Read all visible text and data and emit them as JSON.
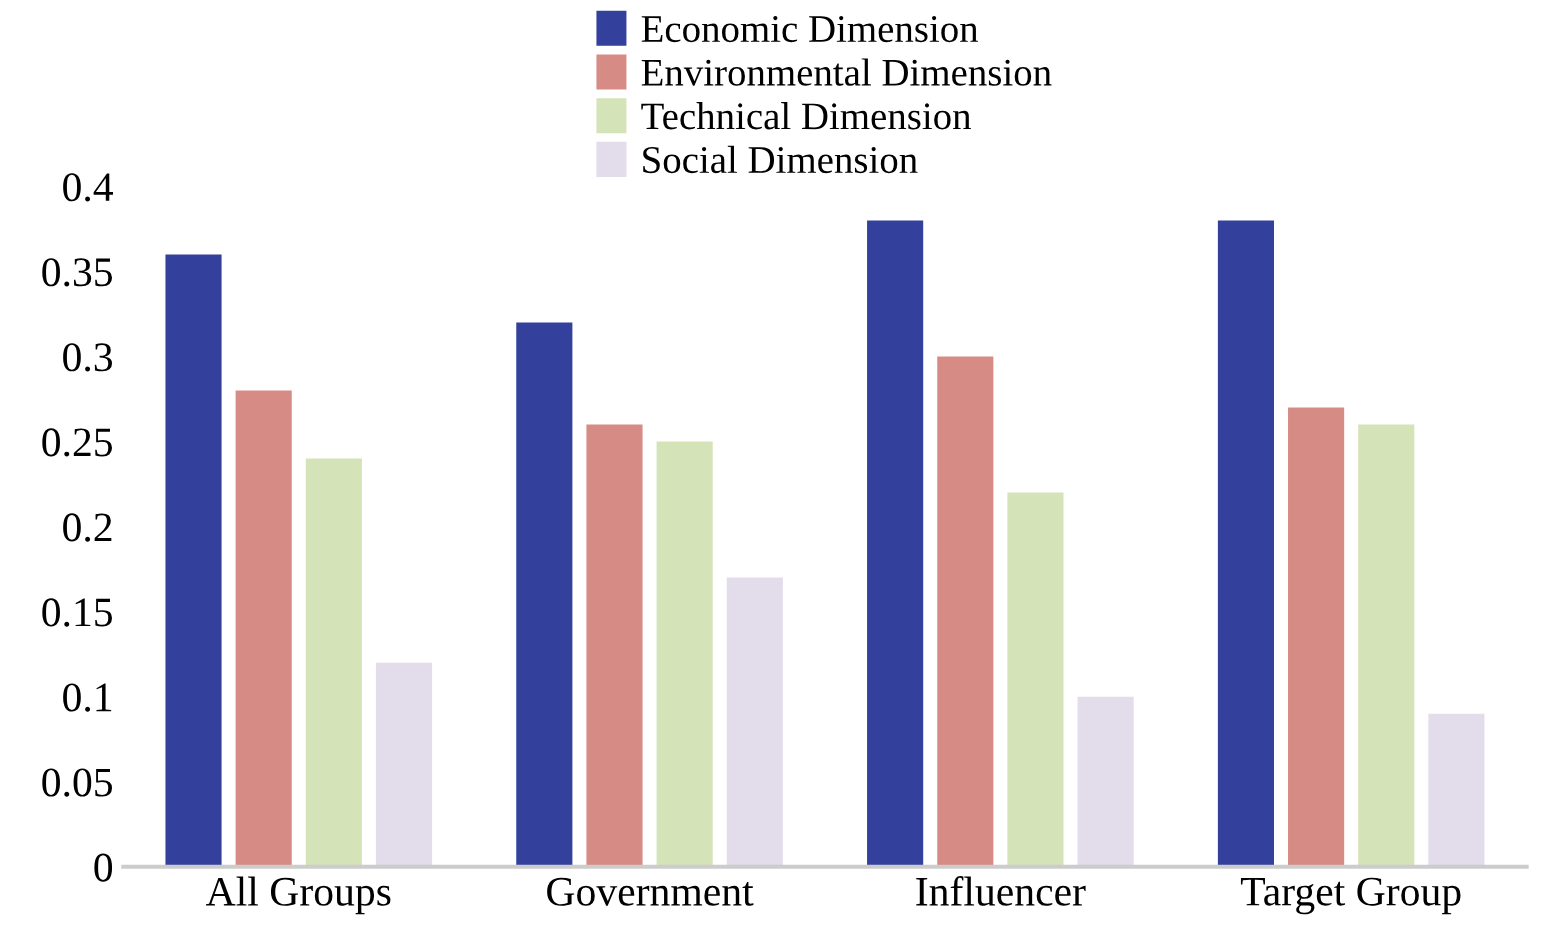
{
  "chart_data": {
    "type": "bar",
    "categories": [
      "All Groups",
      "Government",
      "Influencer",
      "Target Group"
    ],
    "series": [
      {
        "name": "Economic Dimension",
        "color": "#33409c",
        "values": [
          0.36,
          0.32,
          0.38,
          0.38
        ]
      },
      {
        "name": "Environmental Dimension",
        "color": "#d78b85",
        "values": [
          0.28,
          0.26,
          0.3,
          0.27
        ]
      },
      {
        "name": "Technical Dimension",
        "color": "#d5e3b8",
        "values": [
          0.24,
          0.25,
          0.22,
          0.26
        ]
      },
      {
        "name": "Social Dimension",
        "color": "#e2dceb",
        "values": [
          0.12,
          0.17,
          0.1,
          0.09
        ]
      }
    ],
    "ylim": [
      0,
      0.4
    ],
    "yticks": [
      0,
      0.05,
      0.1,
      0.15,
      0.2,
      0.25,
      0.3,
      0.35,
      0.4
    ],
    "grid": false,
    "legend": "top"
  }
}
